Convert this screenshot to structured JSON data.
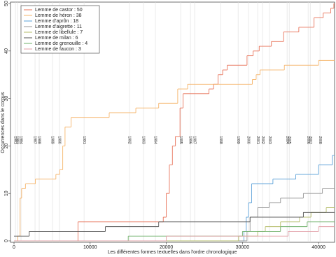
{
  "chart_data": {
    "type": "step",
    "x_label": "Les différentes formes textuelles dans l'ordre chronologique",
    "y_label": "Occurrences dans le corpus",
    "xlim": [
      -460,
      42100
    ],
    "ylim": [
      -0.3,
      50.3
    ],
    "xticks": [
      0,
      10000,
      20000,
      30000,
      40000
    ],
    "yticks": [
      0,
      10,
      20,
      30,
      40,
      50
    ],
    "legend": "top-left",
    "year_markers": [
      {
        "x": 184,
        "label": "1981"
      },
      {
        "x": 460,
        "label": "1983"
      },
      {
        "x": 920,
        "label": "1984"
      },
      {
        "x": 2760,
        "label": "1987"
      },
      {
        "x": 3310,
        "label": "1988"
      },
      {
        "x": 5060,
        "label": "1989"
      },
      {
        "x": 5980,
        "label": "1990"
      },
      {
        "x": 9200,
        "label": "1991"
      },
      {
        "x": 15170,
        "label": "1992"
      },
      {
        "x": 17010,
        "label": "1993"
      },
      {
        "x": 18570,
        "label": "1994"
      },
      {
        "x": 21890,
        "label": "1995"
      },
      {
        "x": 23170,
        "label": "1996"
      },
      {
        "x": 23720,
        "label": "1997"
      },
      {
        "x": 27130,
        "label": "1998"
      },
      {
        "x": 29430,
        "label": "1999"
      },
      {
        "x": 30800,
        "label": "2000"
      },
      {
        "x": 32000,
        "label": "2001"
      },
      {
        "x": 32640,
        "label": "2002"
      },
      {
        "x": 33560,
        "label": "2003"
      },
      {
        "x": 35860,
        "label": "2004"
      },
      {
        "x": 36140,
        "label": "2005"
      },
      {
        "x": 38620,
        "label": "2006"
      },
      {
        "x": 38900,
        "label": "2007"
      },
      {
        "x": 40180,
        "label": "2008"
      }
    ],
    "series": [
      {
        "name": "Lemme de castor : 50",
        "color": "#e8735a",
        "x": [
          0,
          8400,
          19600,
          20000,
          20400,
          20800,
          21200,
          21800,
          22200,
          25600,
          26200,
          26800,
          27400,
          28000,
          30600,
          31400,
          32200,
          33800,
          35400,
          37400,
          39400,
          40600,
          41600,
          42000
        ],
        "values": [
          0,
          4,
          5,
          10,
          16,
          20,
          22,
          28,
          31,
          32,
          33,
          35,
          36,
          37,
          39,
          40,
          41,
          42,
          44,
          45,
          47,
          48,
          49,
          50
        ]
      },
      {
        "name": "Lemme de héron : 38",
        "color": "#f5b46a",
        "x": [
          0,
          500,
          800,
          1000,
          1500,
          2800,
          5500,
          6000,
          6400,
          6700,
          7500,
          12500,
          16000,
          19000,
          21500,
          22800,
          31300,
          31800,
          32300,
          35500,
          40000
        ],
        "values": [
          0,
          1,
          9,
          11,
          12,
          13,
          14,
          15,
          20,
          24,
          26,
          27,
          28,
          29,
          32,
          33,
          34,
          35,
          36,
          37,
          38
        ]
      },
      {
        "name": "Lemme d'aprôn : 18",
        "color": "#5aa0d8",
        "x": [
          0,
          30200,
          30500,
          30800,
          31200,
          34000,
          37000,
          40000,
          41800
        ],
        "values": [
          0,
          2,
          5,
          8,
          12,
          13,
          14,
          16,
          18
        ]
      },
      {
        "name": "Lemme d'aigrette : 11",
        "color": "#999999",
        "x": [
          0,
          30600,
          31000,
          32000,
          33500,
          35000,
          38000,
          40500
        ],
        "values": [
          0,
          2,
          5,
          7,
          8,
          9,
          10,
          11
        ]
      },
      {
        "name": "Lemme de libellule : 7",
        "color": "#b5bd6a",
        "x": [
          0,
          29500,
          32000,
          33000,
          35000,
          37500,
          39000,
          41000
        ],
        "values": [
          0,
          1,
          2,
          3,
          4,
          5,
          6,
          7
        ]
      },
      {
        "name": "Lemme de milan : 6",
        "color": "#555555",
        "x": [
          0,
          2000,
          12000,
          19000,
          31000,
          38000
        ],
        "values": [
          1,
          2,
          3,
          4,
          5,
          6
        ]
      },
      {
        "name": "Lemme de grenouille : 4",
        "color": "#6fb06a",
        "x": [
          0,
          15000,
          30000,
          35000,
          38500
        ],
        "values": [
          0,
          1,
          2,
          3,
          4
        ]
      },
      {
        "name": "Lemme de faucon : 3",
        "color": "#e3a0a8",
        "x": [
          0,
          20000,
          36000,
          40000
        ],
        "values": [
          0,
          1,
          2,
          3
        ]
      }
    ]
  }
}
